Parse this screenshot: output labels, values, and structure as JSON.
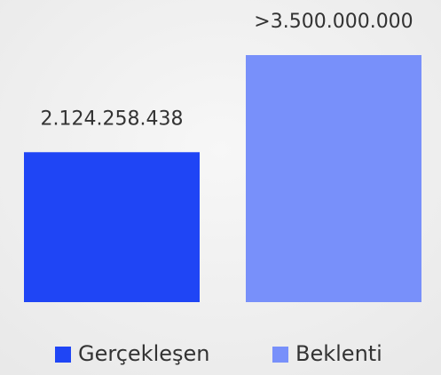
{
  "chart_data": {
    "type": "bar",
    "series": [
      {
        "name": "Gerçekleşen",
        "color": "#1f45f5",
        "values": [
          2124258438
        ],
        "value_labels": [
          "2.124.258.438"
        ]
      },
      {
        "name": "Beklenti",
        "color": "#7890fa",
        "values": [
          3500000000
        ],
        "value_labels": [
          ">3.500.000.000"
        ]
      }
    ]
  }
}
